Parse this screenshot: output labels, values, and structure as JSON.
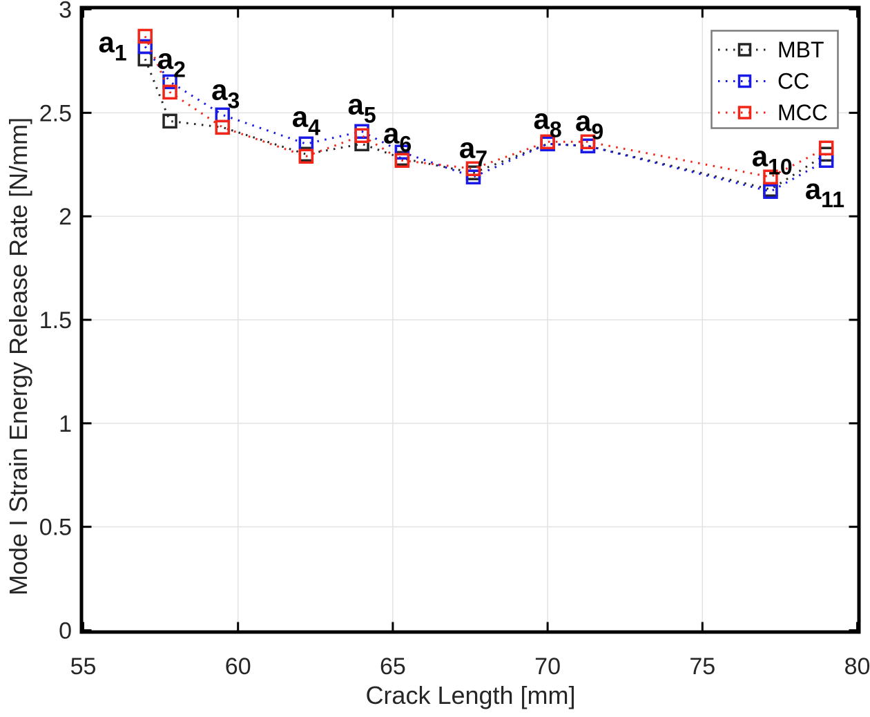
{
  "chart_data": {
    "type": "line",
    "title": "",
    "xlabel": "Crack Length [mm]",
    "ylabel": "Mode I Strain Energy Release Rate [N/mm]",
    "xlim": [
      55,
      80
    ],
    "ylim": [
      0,
      3
    ],
    "xticks": [
      "55",
      "60",
      "65",
      "70",
      "75",
      "80"
    ],
    "yticks": [
      "0",
      "0.5",
      "1",
      "1.5",
      "2",
      "2.5",
      "3"
    ],
    "grid": true,
    "legend": {
      "position": "top-right",
      "entries": [
        "MBT",
        "CC",
        "MCC"
      ]
    },
    "x": [
      57,
      57.8,
      59.5,
      62.2,
      64,
      65.3,
      67.6,
      70,
      71.3,
      77.2,
      79
    ],
    "series": [
      {
        "name": "MBT",
        "color": "#262626",
        "marker": "square",
        "linestyle": "dotted",
        "values": [
          2.76,
          2.46,
          2.43,
          2.3,
          2.35,
          2.28,
          2.21,
          2.35,
          2.34,
          2.13,
          2.3
        ]
      },
      {
        "name": "CC",
        "color": "#1a1ae6",
        "marker": "square",
        "linestyle": "dotted",
        "values": [
          2.82,
          2.65,
          2.49,
          2.35,
          2.41,
          2.31,
          2.19,
          2.35,
          2.34,
          2.12,
          2.27
        ]
      },
      {
        "name": "MCC",
        "color": "#f22618",
        "marker": "square",
        "linestyle": "dotted",
        "values": [
          2.87,
          2.6,
          2.43,
          2.29,
          2.39,
          2.27,
          2.23,
          2.36,
          2.36,
          2.19,
          2.33
        ]
      }
    ],
    "point_labels": [
      {
        "base": "a",
        "sub": "1",
        "x": 55.95,
        "y": 2.84
      },
      {
        "base": "a",
        "sub": "2",
        "x": 57.85,
        "y": 2.76
      },
      {
        "base": "a",
        "sub": "3",
        "x": 59.6,
        "y": 2.61
      },
      {
        "base": "a",
        "sub": "4",
        "x": 62.2,
        "y": 2.48
      },
      {
        "base": "a",
        "sub": "5",
        "x": 64.0,
        "y": 2.54
      },
      {
        "base": "a",
        "sub": "6",
        "x": 65.15,
        "y": 2.4
      },
      {
        "base": "a",
        "sub": "7",
        "x": 67.6,
        "y": 2.33
      },
      {
        "base": "a",
        "sub": "8",
        "x": 70.0,
        "y": 2.47
      },
      {
        "base": "a",
        "sub": "9",
        "x": 71.35,
        "y": 2.46
      },
      {
        "base": "a",
        "sub": "10",
        "x": 77.25,
        "y": 2.29
      },
      {
        "base": "a",
        "sub": "11",
        "x": 78.95,
        "y": 2.13
      }
    ],
    "colors": {
      "grid": "#e2e2e2",
      "axis": "#000000",
      "tick_label": "#262626",
      "label_text": "#000000",
      "legend_border": "#7b7b7b",
      "background": "#ffffff"
    }
  }
}
